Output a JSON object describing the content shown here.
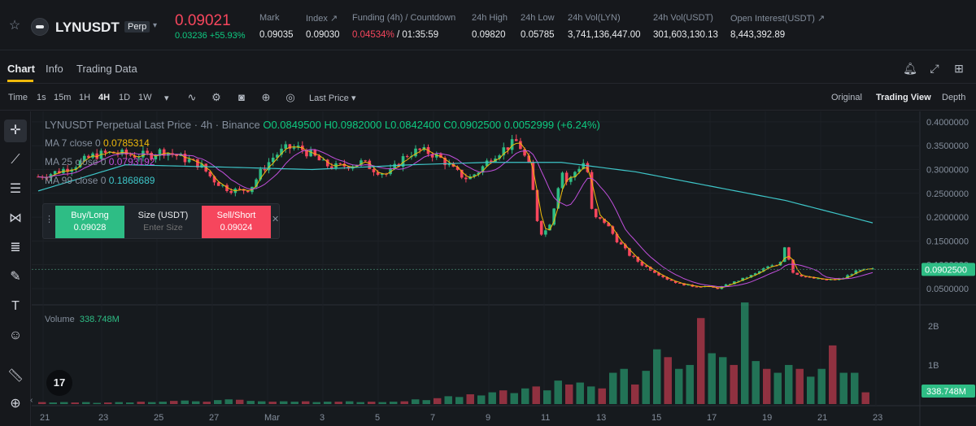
{
  "header": {
    "symbol": "LYNUSDT",
    "badge": "Perp",
    "last_price": "0.09021",
    "change": "0.03236 +55.93%",
    "stats": [
      {
        "label": "Mark",
        "value": "0.09035"
      },
      {
        "label": "Index",
        "value": "0.09030"
      },
      {
        "label": "Funding (4h) / Countdown",
        "value_red": "0.04534%",
        "value": " / 01:35:59"
      },
      {
        "label": "24h High",
        "value": "0.09820"
      },
      {
        "label": "24h Low",
        "value": "0.05785"
      },
      {
        "label": "24h Vol(LYN)",
        "value": "3,741,136,447.00"
      },
      {
        "label": "24h Vol(USDT)",
        "value": "301,603,130.13"
      },
      {
        "label": "Open Interest(USDT)",
        "value": "8,443,392.89"
      }
    ]
  },
  "tabs": [
    {
      "label": "Chart"
    },
    {
      "label": "Info"
    },
    {
      "label": "Trading Data"
    }
  ],
  "toolbar": {
    "intervals": [
      "Time",
      "1s",
      "15m",
      "1H",
      "4H",
      "1D",
      "1W"
    ],
    "price_type": "Last Price",
    "views": [
      "Original",
      "Trading View",
      "Depth"
    ]
  },
  "legend": {
    "title": "LYNUSDT Perpetual Last Price · 4h · Binance",
    "ohlc": "O0.0849500 H0.0982000 L0.0842400 C0.0902500 0.0052999 (+6.24%)",
    "ma": [
      {
        "label": "MA 7 close 0",
        "value": "0.0785314",
        "color": "#f0b90b"
      },
      {
        "label": "MA 25 close 0",
        "value": "0.0793192",
        "color": "#c04fdb"
      },
      {
        "label": "MA 99 close 0",
        "value": "0.1868689",
        "color": "#3ec6c9"
      }
    ]
  },
  "trade_panel": {
    "buy_label": "Buy/Long",
    "buy_price": "0.09028",
    "size_label": "Size (USDT)",
    "size_placeholder": "Enter Size",
    "sell_label": "Sell/Short",
    "sell_price": "0.09024"
  },
  "volume": {
    "label": "Volume",
    "value": "338.748M"
  },
  "chart_data": {
    "type": "candlestick",
    "price_axis": [
      "0.4000000",
      "0.3500000",
      "0.3000000",
      "0.2500000",
      "0.2000000",
      "0.1500000",
      "0.1000000",
      "0.0500000"
    ],
    "price_range": [
      0.038,
      0.405
    ],
    "current_price_label": "0.0902500",
    "volume_axis": [
      "2B",
      "1B"
    ],
    "volume_range": [
      0,
      2.6
    ],
    "volume_current_label": "338.748M",
    "x_ticks": [
      "21",
      "23",
      "25",
      "27",
      "Mar",
      "3",
      "5",
      "7",
      "9",
      "11",
      "13",
      "15",
      "17",
      "19",
      "21",
      "23"
    ],
    "close_path": [
      [
        0,
        0.285
      ],
      [
        1.5,
        0.295
      ],
      [
        3,
        0.31
      ],
      [
        4.5,
        0.33
      ],
      [
        6,
        0.335
      ],
      [
        7.5,
        0.33
      ],
      [
        9,
        0.33
      ],
      [
        10,
        0.34
      ],
      [
        11,
        0.33
      ],
      [
        12,
        0.32
      ],
      [
        13,
        0.31
      ],
      [
        14,
        0.28
      ],
      [
        15,
        0.262
      ],
      [
        16,
        0.255
      ],
      [
        17,
        0.26
      ],
      [
        18,
        0.3
      ],
      [
        19,
        0.33
      ],
      [
        20,
        0.345
      ],
      [
        21,
        0.345
      ],
      [
        22,
        0.33
      ],
      [
        23,
        0.31
      ],
      [
        24,
        0.305
      ],
      [
        25,
        0.31
      ],
      [
        26,
        0.315
      ],
      [
        27,
        0.3
      ],
      [
        28,
        0.29
      ],
      [
        28.5,
        0.3
      ],
      [
        29.5,
        0.33
      ],
      [
        30.5,
        0.34
      ],
      [
        31.5,
        0.335
      ],
      [
        32.5,
        0.32
      ],
      [
        33.5,
        0.295
      ],
      [
        34.5,
        0.28
      ],
      [
        35.5,
        0.3
      ],
      [
        36.5,
        0.33
      ],
      [
        37.5,
        0.345
      ],
      [
        38.5,
        0.36
      ],
      [
        39.5,
        0.3
      ],
      [
        40,
        0.2
      ],
      [
        40.5,
        0.16
      ],
      [
        41.2,
        0.195
      ],
      [
        42,
        0.3
      ],
      [
        42.5,
        0.27
      ],
      [
        43.2,
        0.3
      ],
      [
        44,
        0.32
      ],
      [
        44.5,
        0.2
      ],
      [
        45.5,
        0.19
      ],
      [
        46.5,
        0.15
      ],
      [
        47.5,
        0.12
      ],
      [
        48.5,
        0.1
      ],
      [
        49.5,
        0.085
      ],
      [
        50.5,
        0.07
      ],
      [
        51.5,
        0.06
      ],
      [
        52.5,
        0.055
      ],
      [
        53.5,
        0.055
      ],
      [
        54.5,
        0.05
      ],
      [
        55.5,
        0.06
      ],
      [
        56.5,
        0.07
      ],
      [
        57.5,
        0.08
      ],
      [
        58.5,
        0.095
      ],
      [
        59.5,
        0.1
      ],
      [
        60,
        0.145
      ],
      [
        60.5,
        0.085
      ],
      [
        61.5,
        0.075
      ],
      [
        62.5,
        0.07
      ],
      [
        63.5,
        0.068
      ],
      [
        64.5,
        0.07
      ],
      [
        65.5,
        0.085
      ],
      [
        66.5,
        0.09
      ],
      [
        67,
        0.09025
      ]
    ],
    "ma99": [
      [
        0,
        0.255
      ],
      [
        7,
        0.31
      ],
      [
        15,
        0.305
      ],
      [
        22,
        0.3
      ],
      [
        30,
        0.31
      ],
      [
        36,
        0.315
      ],
      [
        42,
        0.315
      ],
      [
        48,
        0.295
      ],
      [
        54,
        0.265
      ],
      [
        60,
        0.235
      ],
      [
        67,
        0.188
      ]
    ],
    "volume_series": [
      0.05,
      0.04,
      0.05,
      0.04,
      0.05,
      0.03,
      0.04,
      0.05,
      0.04,
      0.06,
      0.05,
      0.06,
      0.08,
      0.09,
      0.07,
      0.06,
      0.1,
      0.12,
      0.11,
      0.08,
      0.07,
      0.06,
      0.07,
      0.06,
      0.07,
      0.05,
      0.06,
      0.06,
      0.07,
      0.05,
      0.06,
      0.05,
      0.06,
      0.07,
      0.12,
      0.1,
      0.15,
      0.2,
      0.18,
      0.25,
      0.22,
      0.3,
      0.35,
      0.28,
      0.4,
      0.45,
      0.35,
      0.6,
      0.5,
      0.55,
      0.45,
      0.4,
      0.8,
      0.9,
      0.5,
      0.85,
      1.4,
      1.2,
      0.9,
      1.0,
      2.2,
      1.3,
      1.2,
      1.0,
      2.6,
      1.1,
      0.9,
      0.8,
      1.0,
      0.9,
      0.7,
      0.9,
      1.5,
      0.8,
      0.8,
      0.3
    ]
  }
}
